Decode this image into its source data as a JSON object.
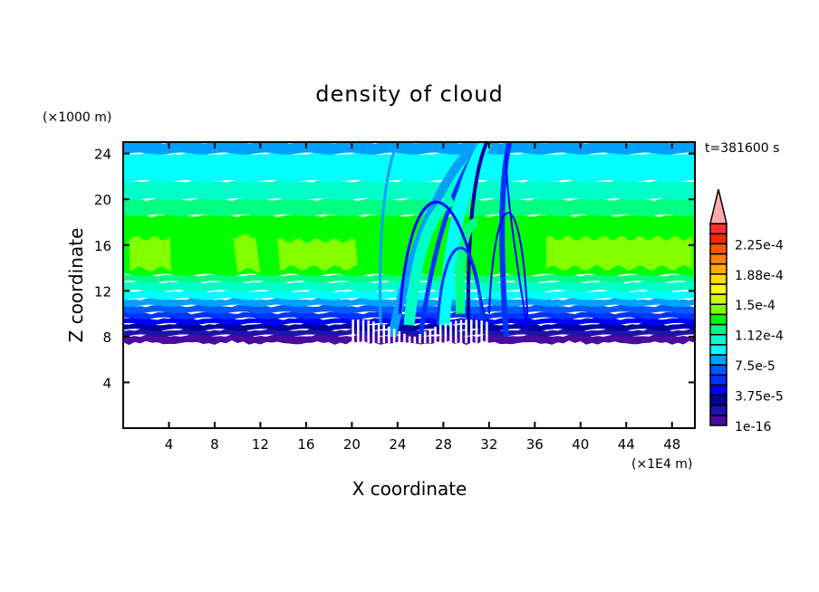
{
  "chart_data": {
    "type": "heatmap",
    "title": "density of cloud",
    "xlabel": "X coordinate",
    "ylabel": "Z coordinate",
    "x_unit": "(×1E4 m)",
    "y_unit": "(×1000 m)",
    "time_label": "t=381600 s",
    "xlim": [
      0,
      50
    ],
    "ylim": [
      0,
      25
    ],
    "x_ticks": [
      "4",
      "8",
      "12",
      "16",
      "20",
      "24",
      "28",
      "32",
      "36",
      "40",
      "44",
      "48"
    ],
    "y_ticks": [
      "4",
      "8",
      "12",
      "16",
      "20",
      "24"
    ],
    "colorbar": {
      "levels_interval": 1.25e-05,
      "labels": [
        "1e-16",
        "3.75e-5",
        "7.5e-5",
        "1.12e-4",
        "1.5e-4",
        "1.88e-4",
        "2.25e-4"
      ],
      "colors": [
        "#4b0aa0",
        "#1e14aa",
        "#0000a0",
        "#0000ff",
        "#0032ff",
        "#005aff",
        "#00a0ff",
        "#00ffff",
        "#00ffc8",
        "#00ff82",
        "#00ff00",
        "#82ff00",
        "#c8ff00",
        "#ffff00",
        "#ffdc00",
        "#ffaa00",
        "#ff8200",
        "#ff5a00",
        "#ff2800",
        "#ff3030"
      ],
      "overflow_color": "#ffaaaa"
    },
    "background_profile": [
      {
        "z0": 7.6,
        "z1": 8.1,
        "value": 6e-06
      },
      {
        "z0": 8.1,
        "z1": 8.6,
        "value": 1.9e-05
      },
      {
        "z0": 8.6,
        "z1": 9.1,
        "value": 3.1e-05
      },
      {
        "z0": 9.1,
        "z1": 9.6,
        "value": 4.4e-05
      },
      {
        "z0": 9.6,
        "z1": 10.1,
        "value": 5.6e-05
      },
      {
        "z0": 10.1,
        "z1": 10.7,
        "value": 6.9e-05
      },
      {
        "z0": 10.7,
        "z1": 11.3,
        "value": 8.1e-05
      },
      {
        "z0": 11.3,
        "z1": 12.0,
        "value": 9.4e-05
      },
      {
        "z0": 12.0,
        "z1": 12.8,
        "value": 0.000106
      },
      {
        "z0": 12.8,
        "z1": 13.4,
        "value": 0.000119
      },
      {
        "z0": 13.4,
        "z1": 18.6,
        "value": 0.000131
      },
      {
        "z0": 18.6,
        "z1": 20.0,
        "value": 0.000119
      },
      {
        "z0": 20.0,
        "z1": 21.6,
        "value": 0.000106
      },
      {
        "z0": 21.6,
        "z1": 24.0,
        "value": 9.4e-05
      },
      {
        "z0": 24.0,
        "z1": 25.0,
        "value": 8.1e-05
      }
    ],
    "maximum_patches": [
      {
        "x0": 0.5,
        "x1": 4.2,
        "z0": 13.9,
        "z1": 16.6,
        "value": 0.000144
      },
      {
        "x0": 9.6,
        "x1": 12.0,
        "z0": 13.8,
        "z1": 16.8,
        "value": 0.000144
      },
      {
        "x0": 13.5,
        "x1": 20.5,
        "z0": 14.0,
        "z1": 16.4,
        "value": 0.000144
      },
      {
        "x0": 37.0,
        "x1": 49.8,
        "z0": 14.0,
        "z1": 16.6,
        "value": 0.000144
      }
    ],
    "disturbed_region": {
      "x0": 20,
      "x1": 36
    }
  }
}
